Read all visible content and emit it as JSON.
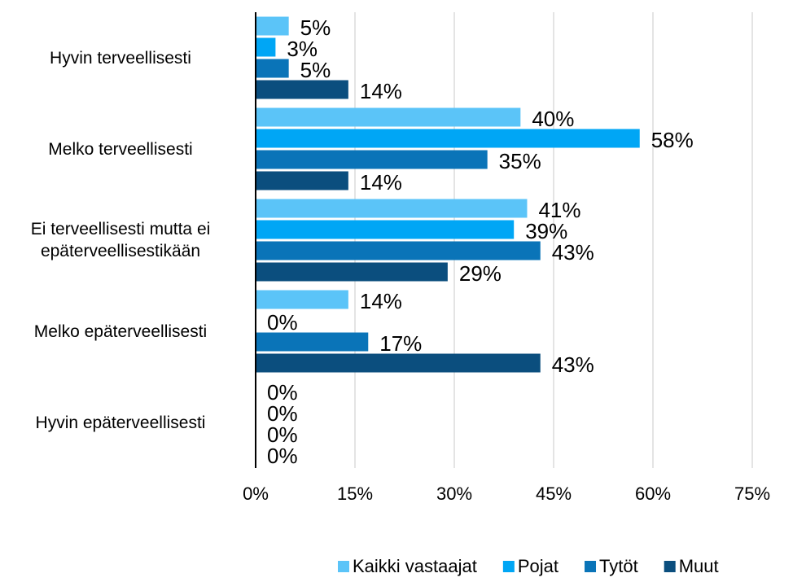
{
  "chart_data": {
    "type": "hbar",
    "categories": [
      "Hyvin terveellisesti",
      "Melko terveellisesti",
      "Ei terveellisesti mutta ei\nepäterveellisestikään",
      "Melko epäterveellisesti",
      "Hyvin epäterveellisesti"
    ],
    "series": [
      {
        "name": "Kaikki vastaajat",
        "color": "#5bc4f8",
        "values": [
          5,
          40,
          41,
          14,
          0
        ],
        "value_labels": [
          "5%",
          "40%",
          "41%",
          "14%",
          "0%"
        ]
      },
      {
        "name": "Pojat",
        "color": "#00a6f5",
        "values": [
          3,
          58,
          39,
          0,
          0
        ],
        "value_labels": [
          "3%",
          "58%",
          "39%",
          "0%",
          "0%"
        ]
      },
      {
        "name": "Tytöt",
        "color": "#0a74b8",
        "values": [
          5,
          35,
          43,
          17,
          0
        ],
        "value_labels": [
          "5%",
          "35%",
          "43%",
          "17%",
          "0%"
        ]
      },
      {
        "name": "Muut",
        "color": "#0b4e7e",
        "values": [
          14,
          14,
          29,
          43,
          0
        ],
        "value_labels": [
          "14%",
          "14%",
          "29%",
          "43%",
          "0%"
        ]
      }
    ],
    "xlim": [
      0,
      75
    ],
    "xticks": [
      {
        "value": 0,
        "label": "0%"
      },
      {
        "value": 15,
        "label": "15%"
      },
      {
        "value": 30,
        "label": "30%"
      },
      {
        "value": 45,
        "label": "45%"
      },
      {
        "value": 60,
        "label": "60%"
      },
      {
        "value": 75,
        "label": "75%"
      }
    ],
    "grid": true,
    "legend": "bottom-right"
  }
}
